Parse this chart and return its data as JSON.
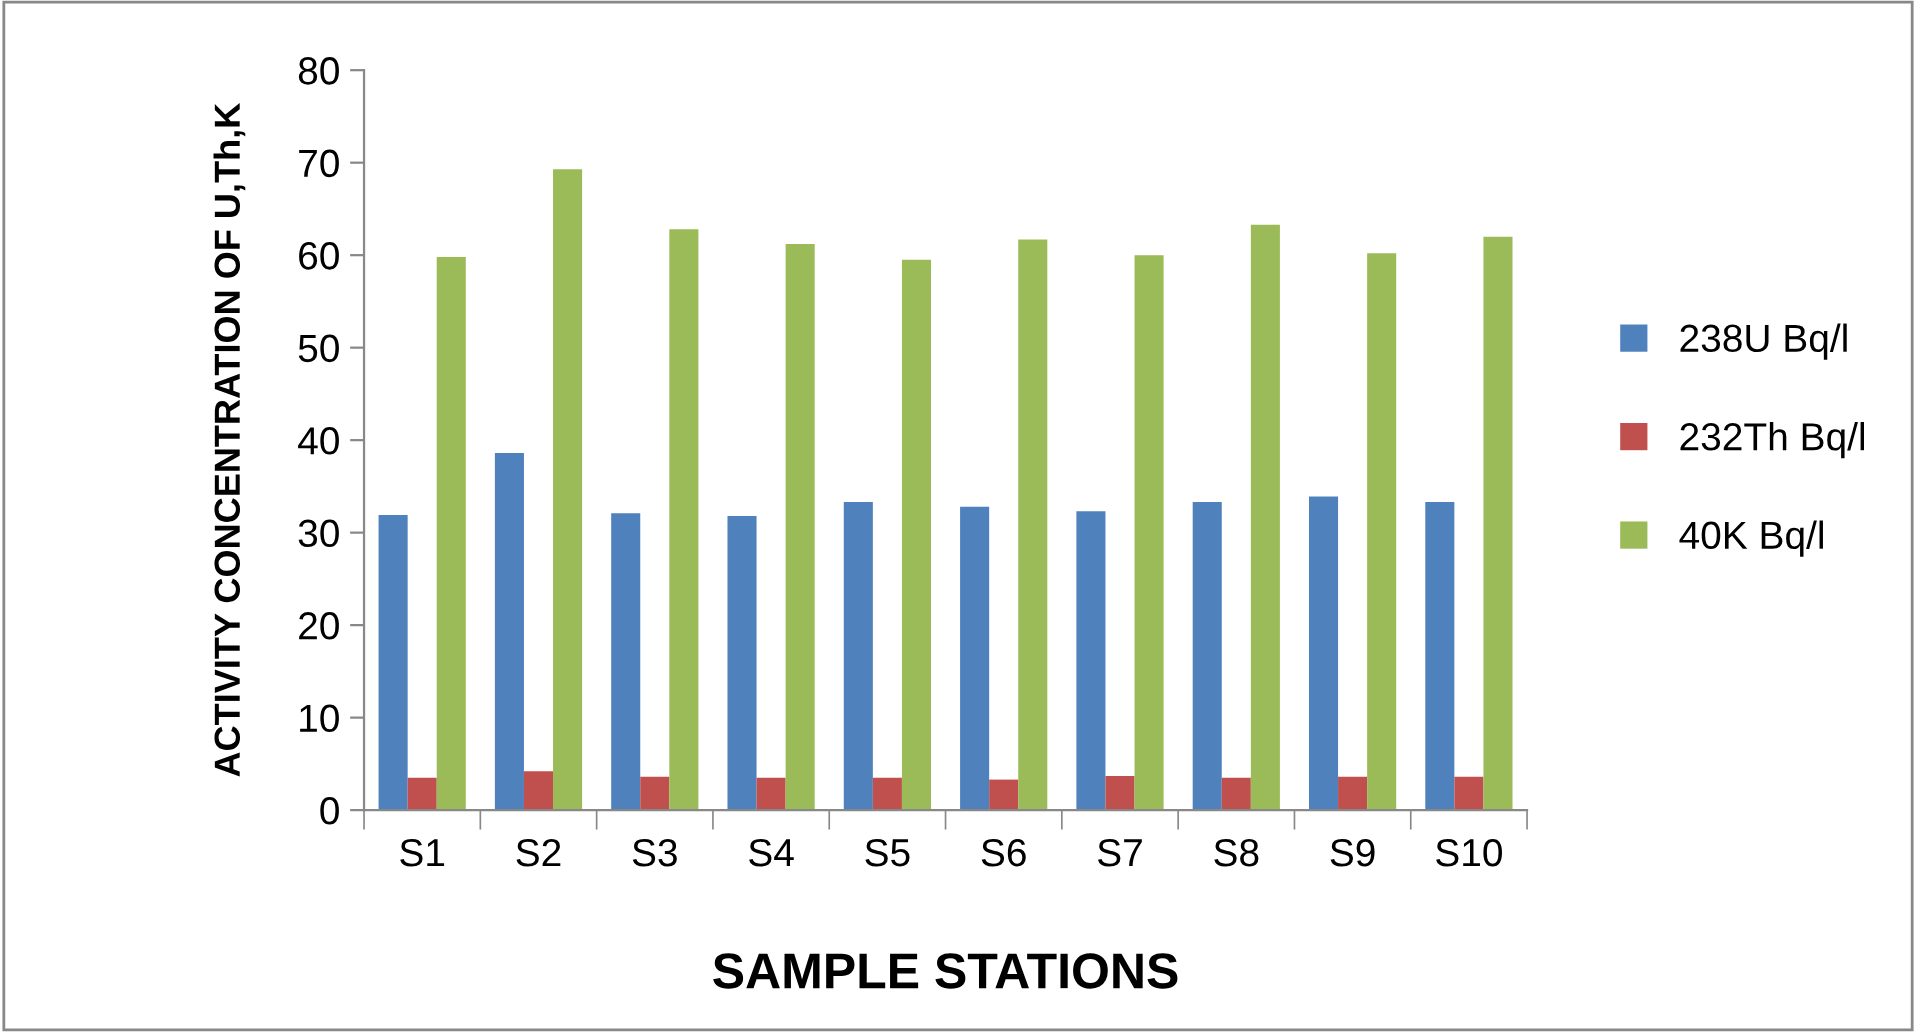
{
  "chart_data": {
    "type": "bar",
    "xlabel": "SAMPLE STATIONS",
    "ylabel": "ACTIVITY CONCENTRATION OF U,Th,K",
    "categories": [
      "S1",
      "S2",
      "S3",
      "S4",
      "S5",
      "S6",
      "S7",
      "S8",
      "S9",
      "S10"
    ],
    "series": [
      {
        "name": "238U Bq/l",
        "color": "#4f81bd",
        "values": [
          31.9,
          38.6,
          32.1,
          31.8,
          33.3,
          32.8,
          32.3,
          33.3,
          33.9,
          33.3
        ]
      },
      {
        "name": "232Th Bq/l",
        "color": "#c0504d",
        "values": [
          3.5,
          4.2,
          3.6,
          3.5,
          3.5,
          3.3,
          3.7,
          3.5,
          3.6,
          3.6
        ]
      },
      {
        "name": "40K Bq/l",
        "color": "#9bbb59",
        "values": [
          59.8,
          69.3,
          62.8,
          61.2,
          59.5,
          61.7,
          60.0,
          63.3,
          60.2,
          62.0
        ]
      }
    ],
    "ylim": [
      0,
      80
    ],
    "yticks": [
      0,
      10,
      20,
      30,
      40,
      50,
      60,
      70,
      80
    ],
    "grid": false,
    "legend": "right"
  }
}
